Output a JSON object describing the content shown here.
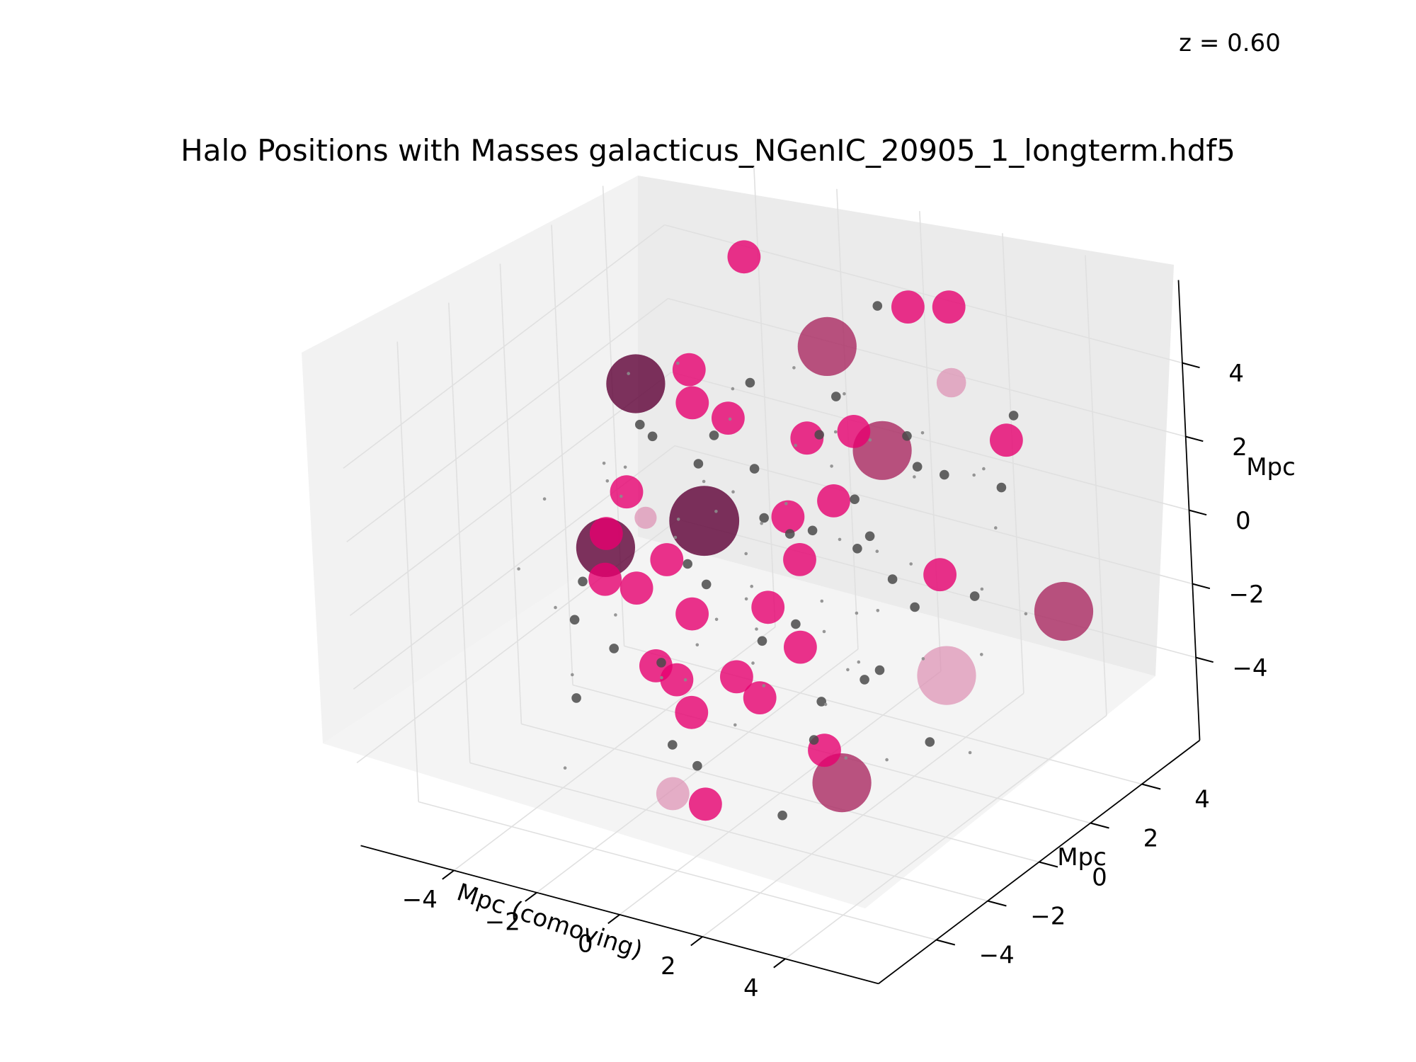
{
  "redshift_label": "z = 0.60",
  "chart_data": {
    "type": "scatter",
    "projection": "3d",
    "title": "Halo Positions with Masses galacticus_NGenIC_20905_1_longterm.hdf5",
    "xlabel": "Mpc (comoving)",
    "ylabel": "Mpc",
    "zlabel": "Mpc",
    "xlim": [
      -5,
      5
    ],
    "ylim": [
      -5,
      5
    ],
    "zlim": [
      -5,
      5
    ],
    "xticks": [
      "−4",
      "−2",
      "0",
      "2",
      "4"
    ],
    "yticks": [
      "−4",
      "−2",
      "0",
      "2",
      "4"
    ],
    "zticks": [
      "−4",
      "−2",
      "0",
      "2",
      "4"
    ],
    "grid": true,
    "legend": "none",
    "colors": {
      "small_halo": "#4a4a4a",
      "medium_halo": "#e6006f",
      "large_halo": "#a8245e",
      "largest_halo": "#5e0036",
      "pale_halo": "#dd8fb2"
    },
    "series": [
      {
        "category": "largest_halo",
        "points": [
          [
            -0.9,
            -1.0,
            1.4,
            9.5
          ],
          [
            -3.2,
            0.2,
            3.8,
            8.0
          ],
          [
            -2.3,
            -2.6,
            1.1,
            8.0
          ]
        ]
      },
      {
        "category": "large_halo",
        "points": [
          [
            -0.3,
            3.0,
            4.2,
            8.0
          ],
          [
            0.8,
            3.2,
            1.6,
            8.0
          ],
          [
            4.6,
            3.9,
            -2.0,
            8.0
          ],
          [
            3.6,
            -3.2,
            -3.2,
            8.0
          ]
        ]
      },
      {
        "category": "pale_halo",
        "points": [
          [
            4.2,
            0.0,
            -1.8,
            8.0
          ],
          [
            2.5,
            3.3,
            3.9,
            4.0
          ],
          [
            -2.2,
            -1.2,
            1.2,
            3.0
          ],
          [
            0.3,
            -4.5,
            -3.8,
            4.5
          ]
        ]
      },
      {
        "category": "medium_halo",
        "points": [
          [
            -2.1,
            2.8,
            6.2,
            4.5
          ],
          [
            1.2,
            3.8,
            5.3,
            4.5
          ],
          [
            0.6,
            0.7,
            3.2,
            4.5
          ],
          [
            -0.2,
            -1.0,
            4.4,
            4.5
          ],
          [
            -2.7,
            -1.1,
            1.7,
            4.5
          ],
          [
            -2.1,
            0.6,
            3.4,
            4.5
          ],
          [
            0.5,
            0.0,
            1.4,
            4.5
          ],
          [
            1.0,
            -0.4,
            0.6,
            4.5
          ],
          [
            0.0,
            -3.0,
            0.2,
            4.5
          ],
          [
            4.3,
            2.5,
            3.3,
            4.5
          ],
          [
            3.5,
            1.0,
            0.2,
            4.5
          ],
          [
            3.6,
            -3.8,
            -2.0,
            4.5
          ],
          [
            0.3,
            -0.6,
            -0.8,
            4.5
          ],
          [
            -3.7,
            -0.4,
            -0.1,
            4.5
          ],
          [
            -2.5,
            -1.2,
            -0.8,
            4.5
          ],
          [
            -2.9,
            0.6,
            -1.1,
            4.5
          ],
          [
            -3.0,
            -1.6,
            -0.5,
            4.5
          ],
          [
            0.3,
            -1.9,
            -2.0,
            4.5
          ],
          [
            -1.1,
            -1.5,
            -3.6,
            4.5
          ],
          [
            0.2,
            0.7,
            -2.6,
            4.5
          ],
          [
            -2.4,
            1.0,
            4.0,
            4.5
          ],
          [
            1.3,
            -2.6,
            -1.9,
            4.5
          ],
          [
            0.5,
            -3.6,
            -4.5,
            4.5
          ],
          [
            1.1,
            1.7,
            3.0,
            4.5
          ],
          [
            2.2,
            3.8,
            5.6,
            4.5
          ],
          [
            0.2,
            -4.0,
            -1.0,
            4.5
          ],
          [
            -1.4,
            -2.3,
            -2.0,
            4.5
          ],
          [
            0.4,
            1.9,
            0.8,
            4.5
          ]
        ]
      },
      {
        "category": "small_halo",
        "points": [
          [
            -2.8,
            1.8,
            0.9,
            1.3
          ],
          [
            -1.5,
            1.9,
            1.1,
            1.3
          ],
          [
            0.4,
            0.2,
            0.8,
            1.3
          ],
          [
            1.7,
            1.2,
            0.6,
            1.3
          ],
          [
            -0.8,
            1.1,
            0.4,
            1.3
          ],
          [
            2.4,
            0.9,
            -0.2,
            1.3
          ],
          [
            3.1,
            -1.4,
            -1.5,
            1.3
          ],
          [
            -3.4,
            -2.2,
            -1.4,
            1.3
          ],
          [
            -1.2,
            -2.4,
            -1.8,
            1.3
          ],
          [
            0.9,
            -1.8,
            -0.9,
            1.3
          ],
          [
            2.7,
            -0.2,
            -2.0,
            1.3
          ],
          [
            -0.4,
            3.4,
            2.6,
            1.3
          ],
          [
            1.9,
            2.8,
            1.7,
            1.3
          ],
          [
            3.8,
            3.0,
            1.6,
            1.3
          ],
          [
            -2.6,
            -3.5,
            -2.6,
            1.3
          ],
          [
            0.8,
            -4.3,
            -3.0,
            1.3
          ],
          [
            2.9,
            -3.1,
            -2.3,
            1.3
          ],
          [
            -1.9,
            2.5,
            3.0,
            1.3
          ],
          [
            0.0,
            4.5,
            4.6,
            1.3
          ],
          [
            3.4,
            4.2,
            2.8,
            1.3
          ],
          [
            -3.6,
            0.9,
            2.2,
            1.3
          ],
          [
            1.5,
            -0.6,
            -3.0,
            1.3
          ],
          [
            -0.5,
            -3.2,
            -3.4,
            1.3
          ],
          [
            4.0,
            1.5,
            -0.5,
            1.3
          ],
          [
            2.0,
            -2.2,
            0.1,
            1.3
          ],
          [
            -1.7,
            0.2,
            -1.2,
            1.3
          ],
          [
            0.6,
            2.4,
            -0.7,
            1.3
          ],
          [
            3.2,
            1.8,
            2.4,
            1.3
          ],
          [
            -2.2,
            -0.8,
            3.2,
            1.3
          ],
          [
            1.1,
            0.4,
            3.6,
            1.3
          ],
          [
            -0.9,
            -1.7,
            0.6,
            1.3
          ],
          [
            2.5,
            -3.8,
            -4.1,
            1.3
          ],
          [
            -3.1,
            2.9,
            1.0,
            1.3
          ],
          [
            0.2,
            3.0,
            0.2,
            1.3
          ],
          [
            4.3,
            -0.9,
            -3.1,
            1.3
          ],
          [
            -1.3,
            -4.0,
            -0.6,
            1.3
          ],
          [
            1.8,
            -1.1,
            2.0,
            1.3
          ],
          [
            -2.9,
            -2.6,
            0.0,
            1.3
          ],
          [
            0.9,
            4.0,
            1.6,
            1.3
          ],
          [
            2.2,
            2.0,
            -1.6,
            1.3
          ]
        ]
      },
      {
        "category": "dust",
        "points": [
          [
            -4.1,
            3.2,
            2.5,
            0.45
          ],
          [
            -3.5,
            -0.5,
            -2.2,
            0.45
          ],
          [
            -2.4,
            1.6,
            -3.1,
            0.45
          ],
          [
            -1.6,
            -2.8,
            3.6,
            0.45
          ],
          [
            -0.8,
            0.8,
            -4.0,
            0.45
          ],
          [
            0.1,
            -1.4,
            2.7,
            0.45
          ],
          [
            0.9,
            2.6,
            -2.4,
            0.45
          ],
          [
            1.6,
            -3.4,
            1.3,
            0.45
          ],
          [
            2.4,
            0.3,
            3.9,
            0.45
          ],
          [
            3.3,
            -1.9,
            -0.7,
            0.45
          ],
          [
            4.2,
            2.1,
            1.1,
            0.45
          ],
          [
            -3.8,
            -3.6,
            0.6,
            0.45
          ],
          [
            -2.0,
            3.8,
            -1.0,
            0.45
          ],
          [
            -0.2,
            -0.3,
            -1.7,
            0.45
          ],
          [
            1.3,
            1.1,
            4.4,
            0.45
          ],
          [
            2.8,
            3.5,
            -3.5,
            0.45
          ],
          [
            3.9,
            -4.1,
            2.3,
            0.45
          ],
          [
            -1.1,
            4.4,
            0.9,
            0.45
          ],
          [
            0.6,
            -2.5,
            -2.9,
            0.45
          ],
          [
            2.1,
            -0.7,
            -4.3,
            0.45
          ],
          [
            -4.4,
            1.3,
            -0.2,
            0.45
          ],
          [
            -2.7,
            -1.9,
            2.9,
            0.45
          ],
          [
            -0.6,
            2.1,
            1.9,
            0.45
          ],
          [
            1.0,
            -4.4,
            0.4,
            0.45
          ],
          [
            3.0,
            0.7,
            0.5,
            0.45
          ],
          [
            4.4,
            -2.7,
            -2.6,
            0.45
          ],
          [
            -3.3,
            0.1,
            4.1,
            0.45
          ],
          [
            -1.8,
            -0.6,
            -3.4,
            0.45
          ],
          [
            0.3,
            3.6,
            -1.5,
            0.45
          ],
          [
            1.8,
            -3.0,
            3.2,
            0.45
          ],
          [
            3.6,
            2.4,
            -0.9,
            0.45
          ],
          [
            -4.0,
            -2.2,
            1.7,
            0.45
          ],
          [
            -2.3,
            2.3,
            2.0,
            0.45
          ],
          [
            -0.3,
            -3.8,
            -1.2,
            0.45
          ],
          [
            1.4,
            0.6,
            -2.8,
            0.45
          ],
          [
            2.6,
            -1.5,
            4.2,
            0.45
          ],
          [
            4.1,
            0.9,
            -4.4,
            0.45
          ],
          [
            -3.0,
            3.9,
            -3.6,
            0.45
          ],
          [
            -1.4,
            -1.2,
            1.4,
            0.45
          ],
          [
            0.7,
            1.6,
            0.0,
            0.45
          ],
          [
            2.3,
            4.3,
            0.8,
            0.45
          ],
          [
            3.7,
            -0.1,
            3.5,
            0.45
          ],
          [
            -4.3,
            -1.0,
            -3.8,
            0.45
          ],
          [
            -2.5,
            -4.2,
            -4.1,
            0.45
          ],
          [
            -0.9,
            0.3,
            4.3,
            0.45
          ],
          [
            0.8,
            -2.1,
            1.6,
            0.45
          ],
          [
            2.0,
            2.9,
            2.6,
            0.45
          ],
          [
            3.4,
            -3.3,
            0.9,
            0.45
          ],
          [
            -3.9,
            2.5,
            -1.8,
            0.45
          ],
          [
            -1.9,
            1.0,
            0.3,
            0.45
          ],
          [
            0.0,
            -0.8,
            -2.3,
            0.45
          ],
          [
            1.5,
            3.3,
            -3.9,
            0.45
          ],
          [
            2.9,
            -2.6,
            -1.6,
            0.45
          ],
          [
            4.3,
            1.6,
            3.0,
            0.45
          ],
          [
            -3.4,
            -2.9,
            -0.7,
            0.45
          ],
          [
            -1.2,
            3.1,
            3.3,
            0.45
          ],
          [
            0.5,
            -3.1,
            4.0,
            0.45
          ],
          [
            2.2,
            -0.2,
            -0.6,
            0.45
          ],
          [
            3.8,
            3.7,
            -2.2,
            0.45
          ],
          [
            -4.2,
            0.5,
            0.7,
            0.45
          ]
        ]
      }
    ]
  }
}
